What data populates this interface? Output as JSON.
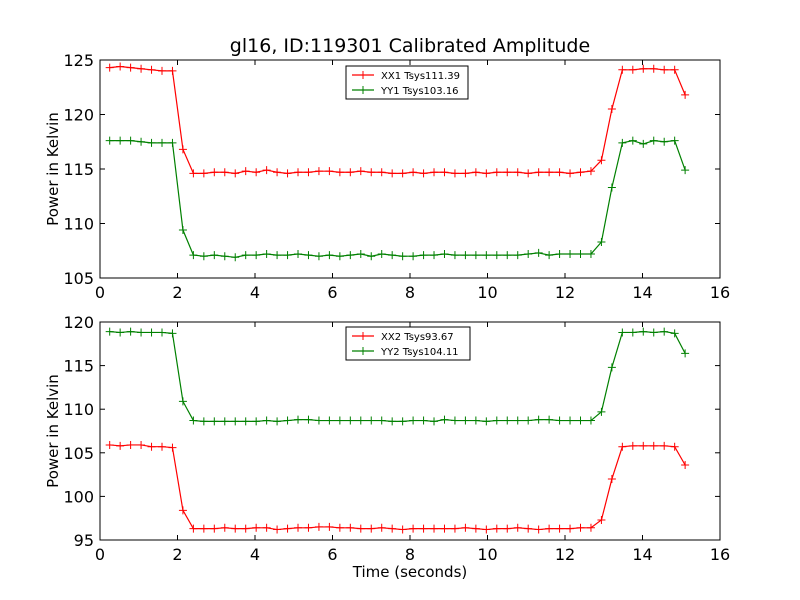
{
  "title": "gl16, ID:119301 Calibrated Amplitude",
  "colors": {
    "red": "#ff0000",
    "green": "#008000"
  },
  "chart_data": [
    {
      "type": "line",
      "title": "gl16, ID:119301 Calibrated Amplitude",
      "xlabel": "",
      "ylabel": "Power in Kelvin",
      "xlim": [
        0,
        16
      ],
      "ylim": [
        105,
        125
      ],
      "xticks": [
        0,
        2,
        4,
        6,
        8,
        10,
        12,
        14,
        16
      ],
      "yticks": [
        105,
        110,
        115,
        120,
        125
      ],
      "grid": false,
      "legend_position": "top-center",
      "x": [
        0.25,
        0.52,
        0.79,
        1.06,
        1.33,
        1.6,
        1.87,
        2.14,
        2.41,
        2.68,
        2.95,
        3.22,
        3.49,
        3.76,
        4.03,
        4.3,
        4.57,
        4.84,
        5.11,
        5.38,
        5.65,
        5.92,
        6.19,
        6.46,
        6.73,
        7.0,
        7.27,
        7.54,
        7.81,
        8.08,
        8.35,
        8.62,
        8.89,
        9.16,
        9.43,
        9.7,
        9.97,
        10.24,
        10.51,
        10.78,
        11.05,
        11.32,
        11.59,
        11.86,
        12.13,
        12.4,
        12.67,
        12.94,
        13.21,
        13.48,
        13.75,
        14.02,
        14.29,
        14.56,
        14.83,
        15.1
      ],
      "series": [
        {
          "name": "XX1 Tsys111.39",
          "color": "#ff0000",
          "values": [
            124.3,
            124.4,
            124.3,
            124.2,
            124.1,
            124.0,
            124.0,
            116.8,
            114.6,
            114.6,
            114.7,
            114.7,
            114.6,
            114.8,
            114.7,
            114.9,
            114.7,
            114.6,
            114.7,
            114.7,
            114.8,
            114.8,
            114.7,
            114.7,
            114.8,
            114.7,
            114.7,
            114.6,
            114.6,
            114.7,
            114.6,
            114.7,
            114.7,
            114.6,
            114.6,
            114.7,
            114.6,
            114.7,
            114.7,
            114.7,
            114.6,
            114.7,
            114.7,
            114.7,
            114.6,
            114.7,
            114.8,
            115.8,
            120.5,
            124.1,
            124.1,
            124.2,
            124.2,
            124.1,
            124.1,
            121.8
          ]
        },
        {
          "name": "YY1 Tsys103.16",
          "color": "#008000",
          "values": [
            117.6,
            117.6,
            117.6,
            117.5,
            117.4,
            117.4,
            117.4,
            109.4,
            107.1,
            107.0,
            107.1,
            107.0,
            106.9,
            107.1,
            107.1,
            107.2,
            107.1,
            107.1,
            107.2,
            107.1,
            107.0,
            107.1,
            107.0,
            107.1,
            107.2,
            107.0,
            107.2,
            107.1,
            107.0,
            107.0,
            107.1,
            107.1,
            107.2,
            107.1,
            107.1,
            107.1,
            107.1,
            107.1,
            107.1,
            107.1,
            107.2,
            107.3,
            107.1,
            107.2,
            107.2,
            107.2,
            107.2,
            108.3,
            113.3,
            117.4,
            117.6,
            117.3,
            117.6,
            117.5,
            117.6,
            114.9
          ]
        }
      ]
    },
    {
      "type": "line",
      "title": "",
      "xlabel": "Time (seconds)",
      "ylabel": "Power in Kelvin",
      "xlim": [
        0,
        16
      ],
      "ylim": [
        95,
        120
      ],
      "xticks": [
        0,
        2,
        4,
        6,
        8,
        10,
        12,
        14,
        16
      ],
      "yticks": [
        95,
        100,
        105,
        110,
        115,
        120
      ],
      "grid": false,
      "legend_position": "top-center",
      "x": [
        0.25,
        0.52,
        0.79,
        1.06,
        1.33,
        1.6,
        1.87,
        2.14,
        2.41,
        2.68,
        2.95,
        3.22,
        3.49,
        3.76,
        4.03,
        4.3,
        4.57,
        4.84,
        5.11,
        5.38,
        5.65,
        5.92,
        6.19,
        6.46,
        6.73,
        7.0,
        7.27,
        7.54,
        7.81,
        8.08,
        8.35,
        8.62,
        8.89,
        9.16,
        9.43,
        9.7,
        9.97,
        10.24,
        10.51,
        10.78,
        11.05,
        11.32,
        11.59,
        11.86,
        12.13,
        12.4,
        12.67,
        12.94,
        13.21,
        13.48,
        13.75,
        14.02,
        14.29,
        14.56,
        14.83,
        15.1
      ],
      "series": [
        {
          "name": "XX2 Tsys93.67",
          "color": "#ff0000",
          "values": [
            105.9,
            105.8,
            105.9,
            105.9,
            105.7,
            105.7,
            105.6,
            98.4,
            96.3,
            96.3,
            96.3,
            96.4,
            96.3,
            96.3,
            96.4,
            96.4,
            96.2,
            96.3,
            96.4,
            96.4,
            96.5,
            96.5,
            96.4,
            96.4,
            96.3,
            96.3,
            96.4,
            96.3,
            96.2,
            96.3,
            96.3,
            96.3,
            96.3,
            96.3,
            96.4,
            96.3,
            96.2,
            96.3,
            96.3,
            96.4,
            96.3,
            96.2,
            96.3,
            96.3,
            96.3,
            96.4,
            96.4,
            97.3,
            102.0,
            105.7,
            105.8,
            105.8,
            105.8,
            105.8,
            105.7,
            103.6
          ]
        },
        {
          "name": "YY2 Tsys104.11",
          "color": "#008000",
          "values": [
            118.9,
            118.8,
            118.9,
            118.8,
            118.8,
            118.8,
            118.7,
            110.9,
            108.7,
            108.6,
            108.6,
            108.6,
            108.6,
            108.6,
            108.6,
            108.7,
            108.6,
            108.7,
            108.8,
            108.8,
            108.7,
            108.7,
            108.7,
            108.7,
            108.7,
            108.7,
            108.7,
            108.6,
            108.6,
            108.7,
            108.7,
            108.6,
            108.8,
            108.7,
            108.7,
            108.7,
            108.6,
            108.7,
            108.7,
            108.7,
            108.7,
            108.8,
            108.8,
            108.7,
            108.7,
            108.7,
            108.7,
            109.7,
            114.8,
            118.8,
            118.8,
            118.9,
            118.8,
            118.9,
            118.7,
            116.4
          ]
        }
      ]
    }
  ]
}
